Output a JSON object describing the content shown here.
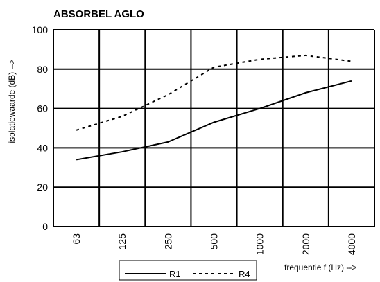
{
  "chart_data": {
    "type": "line",
    "title": "ABSORBEL AGLO",
    "xlabel": "frequentie f (Hz) -->",
    "ylabel": "isolatiewaarde  (dB) -->",
    "categories": [
      "63",
      "125",
      "250",
      "500",
      "1000",
      "2000",
      "4000"
    ],
    "ylim": [
      0,
      100
    ],
    "yticks": [
      0,
      20,
      40,
      60,
      80,
      100
    ],
    "grid": true,
    "legend_position": "bottom",
    "series": [
      {
        "name": "R1",
        "style": "solid",
        "color": "#000000",
        "x": [
          63,
          125,
          250,
          500,
          1000,
          2000,
          4000
        ],
        "values": [
          34,
          38,
          43,
          53,
          60,
          68,
          74
        ]
      },
      {
        "name": "R4",
        "style": "dashed",
        "color": "#000000",
        "x": [
          63,
          125,
          250,
          500,
          1000,
          2000,
          4000
        ],
        "values": [
          49,
          56,
          67,
          81,
          85,
          87,
          84
        ]
      }
    ]
  }
}
